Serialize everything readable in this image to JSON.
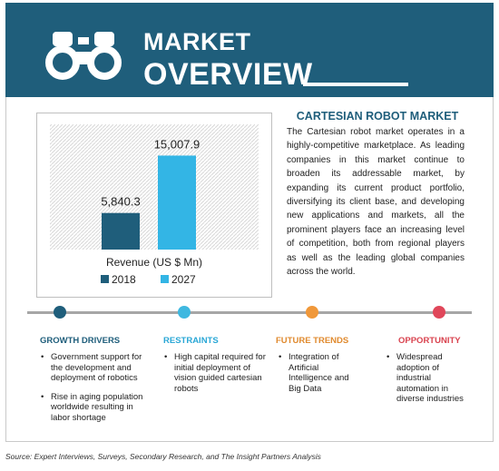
{
  "header": {
    "title_line1": "MARKET",
    "title_line2": "OVERVIEW",
    "icon": "binoculars-icon"
  },
  "chart_data": {
    "type": "bar",
    "categories": [
      "2018",
      "2027"
    ],
    "values": [
      5840.3,
      15007.9
    ],
    "value_labels": [
      "5,840.3",
      "15,007.9"
    ],
    "xlabel": "Revenue (US $ Mn)",
    "ylim": [
      0,
      20000
    ],
    "colors": [
      "#1f5e7b",
      "#33b5e5"
    ],
    "legend": [
      "2018",
      "2027"
    ],
    "legend_position": "bottom",
    "grid": "hatched background"
  },
  "market": {
    "title": "CARTESIAN ROBOT MARKET",
    "description": "The Cartesian robot market operates in a highly-competitive marketplace. As leading companies in this market continue to broaden its addressable market, by expanding its current product portfolio, diversifying its client base, and developing new applications and markets, all the prominent players face an increasing level of competition, both from regional players as well as the leading global companies across the world."
  },
  "timeline": {
    "dot_colors": [
      "#1f5e7b",
      "#3fb8e0",
      "#f0983a",
      "#e0475a"
    ]
  },
  "sections": [
    {
      "title": "GROWTH DRIVERS",
      "color": "#1f5e7b",
      "items": [
        "Government support for the development and deployment of robotics",
        "Rise in aging population worldwide resulting in labor shortage"
      ]
    },
    {
      "title": "RESTRAINTS",
      "color": "#2aa7d6",
      "items": [
        "High capital required for initial deployment of vision guided cartesian robots"
      ]
    },
    {
      "title": "FUTURE TRENDS",
      "color": "#e08a2e",
      "items": [
        "Integration of Artificial Intelligence and Big Data"
      ]
    },
    {
      "title": "OPPORTUNITY",
      "color": "#d9434f",
      "items": [
        "Widespread adoption of industrial automation in diverse industries"
      ]
    }
  ],
  "source": "Source: Expert Interviews, Surveys, Secondary Research, and The Insight Partners Analysis"
}
